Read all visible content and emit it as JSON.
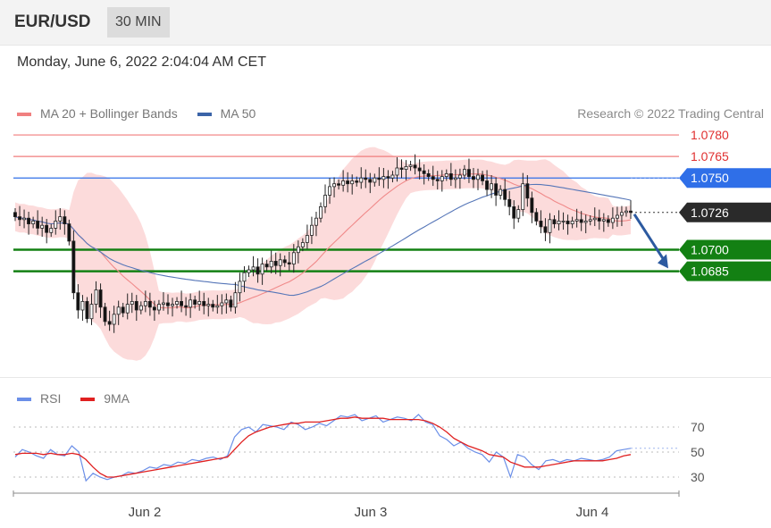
{
  "header": {
    "symbol": "EUR/USD",
    "timeframe": "30 MIN"
  },
  "datetime": "Monday, June 6, 2022 2:04:04 AM CET",
  "legend": {
    "main": [
      {
        "label": "MA 20 + Bollinger Bands",
        "color": "#f08080"
      },
      {
        "label": "MA 50",
        "color": "#3b64a8"
      }
    ],
    "rsi": [
      {
        "label": "RSI",
        "color": "#6b8fe8"
      },
      {
        "label": "9MA",
        "color": "#e02020"
      }
    ]
  },
  "credit": "Research © 2022 Trading Central",
  "colors": {
    "resistance": "#f07c7c",
    "resistance_text": "#e03030",
    "pivot": "#2f6fe8",
    "current": "#2a2a2a",
    "support": "#138013",
    "bb_fill": "#fbd5d5",
    "bull": "#ffffff",
    "bear": "#111111"
  },
  "chart_data": [
    {
      "type": "candlestick",
      "name": "price",
      "x_ticks": [
        "Jun 2",
        "Jun 3",
        "Jun 4"
      ],
      "ylim": [
        1.0625,
        1.079
      ],
      "levels": [
        {
          "label": "1.0780",
          "value": 1.078,
          "kind": "resistance"
        },
        {
          "label": "1.0765",
          "value": 1.0765,
          "kind": "resistance"
        },
        {
          "label": "1.0750",
          "value": 1.075,
          "kind": "pivot"
        },
        {
          "label": "1.0726",
          "value": 1.0726,
          "kind": "current"
        },
        {
          "label": "1.0700",
          "value": 1.07,
          "kind": "support"
        },
        {
          "label": "1.0685",
          "value": 1.0685,
          "kind": "support"
        }
      ],
      "close": [
        1.0723,
        1.0721,
        1.0722,
        1.0718,
        1.072,
        1.0715,
        1.0717,
        1.0712,
        1.0715,
        1.072,
        1.0723,
        1.0718,
        1.0706,
        1.067,
        1.0658,
        1.0664,
        1.0652,
        1.0662,
        1.0672,
        1.066,
        1.065,
        1.0648,
        1.0655,
        1.066,
        1.0656,
        1.0662,
        1.0664,
        1.0658,
        1.0661,
        1.0664,
        1.066,
        1.0658,
        1.0662,
        1.0663,
        1.0661,
        1.0662,
        1.0664,
        1.0661,
        1.066,
        1.0665,
        1.0662,
        1.0664,
        1.0661,
        1.0662,
        1.066,
        1.0661,
        1.0663,
        1.0665,
        1.066,
        1.067,
        1.0678,
        1.0684,
        1.0686,
        1.0688,
        1.0683,
        1.069,
        1.0688,
        1.0692,
        1.0689,
        1.0693,
        1.0691,
        1.069,
        1.0698,
        1.0702,
        1.0705,
        1.071,
        1.0717,
        1.0722,
        1.073,
        1.0738,
        1.0744,
        1.0746,
        1.0745,
        1.0748,
        1.0746,
        1.0748,
        1.0747,
        1.075,
        1.0749,
        1.0747,
        1.075,
        1.0749,
        1.0751,
        1.075,
        1.0752,
        1.0757,
        1.0756,
        1.0758,
        1.0759,
        1.0757,
        1.0755,
        1.0753,
        1.0751,
        1.0749,
        1.0748,
        1.0751,
        1.0753,
        1.0749,
        1.075,
        1.0752,
        1.0756,
        1.0751,
        1.0749,
        1.0752,
        1.0748,
        1.0742,
        1.0746,
        1.0738,
        1.0742,
        1.0735,
        1.073,
        1.0722,
        1.0728,
        1.0746,
        1.0736,
        1.0726,
        1.072,
        1.0716,
        1.0712,
        1.0721,
        1.0718,
        1.072,
        1.072,
        1.0718,
        1.072,
        1.0721,
        1.0719,
        1.072,
        1.0721,
        1.0722,
        1.072,
        1.0721,
        1.0719,
        1.0722,
        1.0724,
        1.0726,
        1.0727,
        1.0726
      ]
    },
    {
      "type": "line",
      "name": "rsi",
      "ylim": [
        20,
        82
      ],
      "y_ticks": [
        70,
        50,
        30
      ],
      "x_ticks": [
        "Jun 2",
        "Jun 3",
        "Jun 4"
      ],
      "series": [
        {
          "name": "RSI",
          "values": [
            46,
            52,
            50,
            47,
            45,
            52,
            48,
            47,
            55,
            50,
            27,
            33,
            30,
            28,
            30,
            31,
            34,
            33,
            35,
            38,
            37,
            40,
            39,
            42,
            41,
            44,
            43,
            45,
            46,
            44,
            47,
            62,
            68,
            70,
            66,
            72,
            71,
            70,
            68,
            74,
            72,
            68,
            70,
            73,
            71,
            75,
            79,
            78,
            80,
            75,
            77,
            79,
            74,
            76,
            78,
            77,
            75,
            80,
            74,
            72,
            63,
            60,
            55,
            58,
            53,
            50,
            48,
            42,
            50,
            46,
            30,
            48,
            46,
            40,
            36,
            43,
            44,
            42,
            44,
            43,
            45,
            44,
            43,
            44,
            46,
            51,
            52,
            53
          ]
        },
        {
          "name": "9MA",
          "values": [
            48,
            49,
            49,
            49,
            48,
            49,
            48,
            48,
            49,
            48,
            44,
            38,
            33,
            30,
            30,
            31,
            32,
            33,
            34,
            35,
            36,
            37,
            38,
            39,
            40,
            41,
            42,
            43,
            44,
            45,
            46,
            52,
            58,
            63,
            66,
            68,
            70,
            71,
            72,
            73,
            73,
            74,
            74,
            74,
            75,
            76,
            77,
            77,
            78,
            77,
            77,
            77,
            77,
            76,
            76,
            76,
            76,
            76,
            75,
            73,
            70,
            66,
            61,
            58,
            55,
            53,
            51,
            48,
            47,
            46,
            42,
            40,
            38,
            38,
            38,
            39,
            40,
            41,
            42,
            43,
            43,
            43,
            43,
            43,
            44,
            45,
            47,
            48
          ]
        }
      ]
    }
  ]
}
